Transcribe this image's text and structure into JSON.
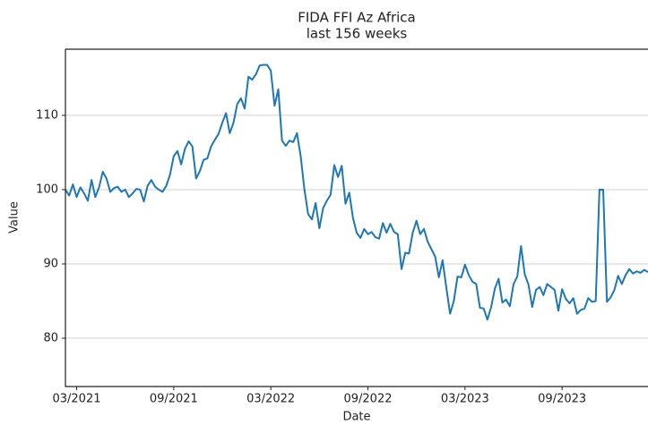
{
  "chart_data": {
    "type": "line",
    "title": "FIDA FFI Az Africa",
    "subtitle": "last 156 weeks",
    "x_label": "Date",
    "y_label": "Value",
    "color": "#1f77b4",
    "grid": true,
    "ylim": [
      73.5,
      118.9
    ],
    "yticks": [
      80,
      90,
      100,
      110
    ],
    "categories": [
      null,
      null,
      null,
      "03/2021",
      null,
      null,
      null,
      null,
      null,
      null,
      null,
      null,
      null,
      null,
      null,
      null,
      null,
      null,
      null,
      null,
      null,
      null,
      null,
      null,
      null,
      null,
      null,
      null,
      null,
      "09/2021",
      null,
      null,
      null,
      null,
      null,
      null,
      null,
      null,
      null,
      null,
      null,
      null,
      null,
      null,
      null,
      null,
      null,
      null,
      null,
      null,
      null,
      null,
      null,
      null,
      null,
      "03/2022",
      null,
      null,
      null,
      null,
      null,
      null,
      null,
      null,
      null,
      null,
      null,
      null,
      null,
      null,
      null,
      null,
      null,
      null,
      null,
      null,
      null,
      null,
      null,
      null,
      null,
      "09/2022",
      null,
      null,
      null,
      null,
      null,
      null,
      null,
      null,
      null,
      null,
      null,
      null,
      null,
      null,
      null,
      null,
      null,
      null,
      null,
      null,
      null,
      null,
      null,
      null,
      null,
      "03/2023",
      null,
      null,
      null,
      null,
      null,
      null,
      null,
      null,
      null,
      null,
      null,
      null,
      null,
      null,
      null,
      null,
      null,
      null,
      null,
      null,
      null,
      null,
      null,
      null,
      null,
      "09/2023",
      null,
      null,
      null,
      null,
      null,
      null,
      null,
      null,
      null,
      null,
      null,
      null,
      null,
      null,
      null,
      null,
      null,
      null,
      null,
      null,
      null,
      null,
      null
    ],
    "values": [
      100,
      99.2,
      100.7,
      99,
      100.3,
      99.5,
      98.5,
      101.3,
      99,
      100.3,
      102.4,
      101.5,
      99.7,
      100.2,
      100.4,
      99.7,
      100,
      99,
      99.5,
      100.1,
      100,
      98.4,
      100.5,
      101.3,
      100.4,
      100,
      99.7,
      100.5,
      102,
      104.5,
      105.2,
      103.4,
      105.5,
      106.5,
      105.8,
      101.5,
      102.5,
      104,
      104.2,
      105.8,
      106.7,
      107.5,
      109,
      110.3,
      107.6,
      109,
      111.5,
      112.3,
      110.9,
      115.2,
      114.8,
      115.5,
      116.7,
      116.8,
      116.8,
      116,
      111.3,
      113.5,
      106.6,
      105.9,
      106.6,
      106.4,
      107.6,
      104.5,
      100,
      96.7,
      96,
      98.2,
      94.8,
      97.5,
      98.5,
      99.3,
      103.3,
      101.7,
      103.2,
      98.1,
      99.6,
      96.2,
      94.2,
      93.5,
      94.7,
      94,
      94.3,
      93.6,
      93.4,
      95.5,
      94.2,
      95.4,
      94.3,
      94,
      89.3,
      91.5,
      91.4,
      94.2,
      95.8,
      94,
      94.7,
      93,
      92,
      91,
      88.2,
      90.5,
      86.8,
      83.3,
      85,
      88.3,
      88.2,
      89.9,
      88.5,
      87.6,
      87.3,
      84.1,
      84,
      82.5,
      84.2,
      86.7,
      88,
      84.8,
      85.2,
      84.3,
      87.3,
      88.3,
      92.4,
      88.6,
      87.2,
      84.2,
      86.5,
      86.9,
      85.8,
      87.3,
      86.9,
      86.5,
      83.7,
      86.6,
      85.3,
      84.7,
      85.4,
      83.3,
      83.8,
      84,
      85.4,
      84.9,
      85,
      100,
      100,
      84.9,
      85.5,
      86.5,
      88.4,
      87.3,
      88.5,
      89.3,
      88.7,
      89,
      88.8,
      89.2,
      88.9
    ]
  }
}
